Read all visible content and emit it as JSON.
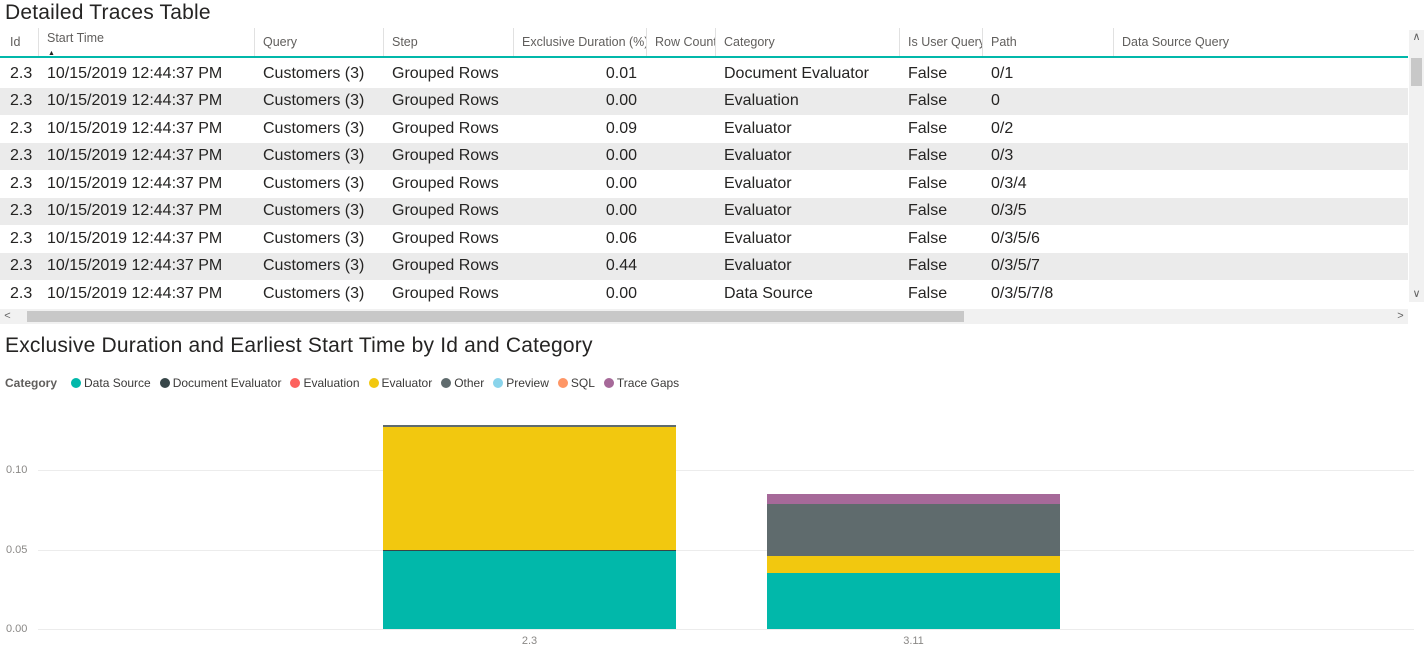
{
  "table": {
    "title": "Detailed Traces Table",
    "columns": [
      "Id",
      "Start Time",
      "Query",
      "Step",
      "Exclusive Duration (%)",
      "Row Count",
      "Category",
      "Is User Query",
      "Path",
      "Data Source Query"
    ],
    "sorted_column": "Start Time",
    "sort_direction": "asc",
    "rows": [
      [
        "2.3",
        "10/15/2019 12:44:37 PM",
        "Customers (3)",
        "Grouped Rows",
        "0.01",
        "",
        "Document Evaluator",
        "False",
        "0/1",
        ""
      ],
      [
        "2.3",
        "10/15/2019 12:44:37 PM",
        "Customers (3)",
        "Grouped Rows",
        "0.00",
        "",
        "Evaluation",
        "False",
        "0",
        ""
      ],
      [
        "2.3",
        "10/15/2019 12:44:37 PM",
        "Customers (3)",
        "Grouped Rows",
        "0.09",
        "",
        "Evaluator",
        "False",
        "0/2",
        ""
      ],
      [
        "2.3",
        "10/15/2019 12:44:37 PM",
        "Customers (3)",
        "Grouped Rows",
        "0.00",
        "",
        "Evaluator",
        "False",
        "0/3",
        ""
      ],
      [
        "2.3",
        "10/15/2019 12:44:37 PM",
        "Customers (3)",
        "Grouped Rows",
        "0.00",
        "",
        "Evaluator",
        "False",
        "0/3/4",
        ""
      ],
      [
        "2.3",
        "10/15/2019 12:44:37 PM",
        "Customers (3)",
        "Grouped Rows",
        "0.00",
        "",
        "Evaluator",
        "False",
        "0/3/5",
        ""
      ],
      [
        "2.3",
        "10/15/2019 12:44:37 PM",
        "Customers (3)",
        "Grouped Rows",
        "0.06",
        "",
        "Evaluator",
        "False",
        "0/3/5/6",
        ""
      ],
      [
        "2.3",
        "10/15/2019 12:44:37 PM",
        "Customers (3)",
        "Grouped Rows",
        "0.44",
        "",
        "Evaluator",
        "False",
        "0/3/5/7",
        ""
      ],
      [
        "2.3",
        "10/15/2019 12:44:37 PM",
        "Customers (3)",
        "Grouped Rows",
        "0.00",
        "",
        "Data Source",
        "False",
        "0/3/5/7/8",
        ""
      ]
    ]
  },
  "chart": {
    "title": "Exclusive Duration and Earliest Start Time by Id and Category",
    "legend_label": "Category",
    "legend_items": [
      "Data Source",
      "Document Evaluator",
      "Evaluation",
      "Evaluator",
      "Other",
      "Preview",
      "SQL",
      "Trace Gaps"
    ]
  },
  "colors": {
    "accent": "#01B8AA",
    "Data Source": "#01B8AA",
    "Document Evaluator": "#374649",
    "Evaluation": "#FD625E",
    "Evaluator": "#F2C80F",
    "Other": "#5F6B6D",
    "Preview": "#8AD4EB",
    "SQL": "#FE9666",
    "Trace Gaps": "#A66999"
  },
  "chart_data": {
    "type": "bar",
    "stacked": true,
    "title": "Exclusive Duration and Earliest Start Time by Id and Category",
    "categories": [
      "2.3",
      "3.11"
    ],
    "series": [
      {
        "name": "Data Source",
        "values": [
          0.049,
          0.035
        ]
      },
      {
        "name": "Document Evaluator",
        "values": [
          0.0006,
          0
        ]
      },
      {
        "name": "Evaluator",
        "values": [
          0.0775,
          0.011
        ]
      },
      {
        "name": "Other",
        "values": [
          0.001,
          0.033
        ]
      },
      {
        "name": "Trace Gaps",
        "values": [
          0,
          0.006
        ]
      }
    ],
    "totals": [
      0.128,
      0.085
    ],
    "yticks": [
      0.0,
      0.05,
      0.1
    ],
    "ytick_labels": [
      "0.00",
      "0.05",
      "0.10"
    ],
    "ylim": [
      0,
      0.135
    ],
    "grid": true,
    "legend_position": "top"
  },
  "scroll": {
    "left_arrow": "<",
    "right_arrow": ">",
    "up_arrow": "∧",
    "down_arrow": "∨"
  }
}
